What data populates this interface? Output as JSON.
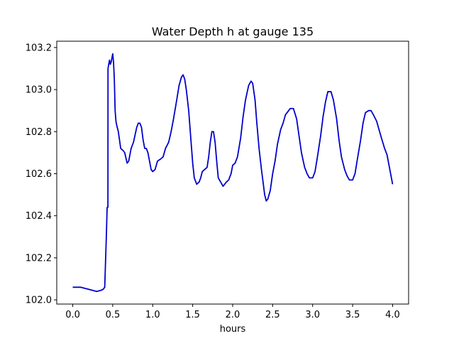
{
  "chart_data": {
    "type": "line",
    "title": "Water Depth h at gauge 135",
    "xlabel": "hours",
    "ylabel": "",
    "xlim": [
      -0.2,
      4.2
    ],
    "ylim": [
      101.98,
      103.23
    ],
    "xticks": [
      0.0,
      0.5,
      1.0,
      1.5,
      2.0,
      2.5,
      3.0,
      3.5,
      4.0
    ],
    "xtick_labels": [
      "0.0",
      "0.5",
      "1.0",
      "1.5",
      "2.0",
      "2.5",
      "3.0",
      "3.5",
      "4.0"
    ],
    "yticks": [
      102.0,
      102.2,
      102.4,
      102.6,
      102.8,
      103.0,
      103.2
    ],
    "ytick_labels": [
      "102.0",
      "102.2",
      "102.4",
      "102.6",
      "102.8",
      "103.0",
      "103.2"
    ],
    "grid": false,
    "legend": "none",
    "series": [
      {
        "color": "#0000cc",
        "x": [
          0.0,
          0.1,
          0.2,
          0.3,
          0.35,
          0.38,
          0.4,
          0.42,
          0.43,
          0.44,
          0.441,
          0.45,
          0.46,
          0.47,
          0.48,
          0.49,
          0.5,
          0.51,
          0.52,
          0.53,
          0.54,
          0.55,
          0.57,
          0.6,
          0.63,
          0.65,
          0.68,
          0.7,
          0.73,
          0.76,
          0.8,
          0.82,
          0.84,
          0.86,
          0.88,
          0.9,
          0.92,
          0.94,
          0.96,
          0.98,
          1.0,
          1.03,
          1.06,
          1.1,
          1.13,
          1.16,
          1.2,
          1.23,
          1.26,
          1.3,
          1.33,
          1.36,
          1.38,
          1.4,
          1.42,
          1.45,
          1.48,
          1.5,
          1.52,
          1.55,
          1.58,
          1.6,
          1.62,
          1.65,
          1.68,
          1.7,
          1.72,
          1.74,
          1.76,
          1.78,
          1.8,
          1.82,
          1.85,
          1.88,
          1.9,
          1.92,
          1.95,
          1.98,
          2.0,
          2.03,
          2.06,
          2.1,
          2.13,
          2.16,
          2.2,
          2.23,
          2.25,
          2.28,
          2.3,
          2.33,
          2.36,
          2.4,
          2.42,
          2.44,
          2.47,
          2.5,
          2.53,
          2.56,
          2.6,
          2.63,
          2.66,
          2.7,
          2.72,
          2.74,
          2.76,
          2.8,
          2.83,
          2.86,
          2.9,
          2.93,
          2.96,
          3.0,
          3.03,
          3.06,
          3.1,
          3.13,
          3.16,
          3.19,
          3.21,
          3.23,
          3.26,
          3.3,
          3.33,
          3.36,
          3.4,
          3.43,
          3.46,
          3.5,
          3.53,
          3.56,
          3.6,
          3.63,
          3.66,
          3.7,
          3.73,
          3.76,
          3.8,
          3.83,
          3.86,
          3.9,
          3.93,
          3.96,
          4.0
        ],
        "y": [
          102.06,
          102.06,
          102.05,
          102.04,
          102.045,
          102.05,
          102.06,
          102.3,
          102.44,
          102.44,
          103.1,
          103.12,
          103.14,
          103.12,
          103.13,
          103.15,
          103.17,
          103.13,
          103.05,
          102.9,
          102.85,
          102.83,
          102.8,
          102.72,
          102.71,
          102.7,
          102.65,
          102.66,
          102.72,
          102.75,
          102.82,
          102.84,
          102.84,
          102.82,
          102.76,
          102.72,
          102.72,
          102.7,
          102.66,
          102.62,
          102.61,
          102.62,
          102.66,
          102.67,
          102.68,
          102.72,
          102.75,
          102.8,
          102.86,
          102.95,
          103.02,
          103.06,
          103.07,
          103.05,
          103.0,
          102.9,
          102.75,
          102.65,
          102.58,
          102.55,
          102.56,
          102.58,
          102.61,
          102.62,
          102.63,
          102.68,
          102.75,
          102.8,
          102.8,
          102.75,
          102.66,
          102.58,
          102.56,
          102.54,
          102.55,
          102.56,
          102.57,
          102.6,
          102.64,
          102.65,
          102.68,
          102.77,
          102.87,
          102.95,
          103.02,
          103.04,
          103.03,
          102.95,
          102.85,
          102.72,
          102.62,
          102.5,
          102.47,
          102.48,
          102.52,
          102.6,
          102.66,
          102.74,
          102.81,
          102.84,
          102.88,
          102.9,
          102.91,
          102.91,
          102.91,
          102.86,
          102.78,
          102.7,
          102.63,
          102.6,
          102.58,
          102.58,
          102.61,
          102.68,
          102.78,
          102.87,
          102.94,
          102.99,
          102.99,
          102.99,
          102.95,
          102.86,
          102.76,
          102.68,
          102.62,
          102.59,
          102.57,
          102.57,
          102.6,
          102.67,
          102.76,
          102.84,
          102.89,
          102.9,
          102.9,
          102.88,
          102.85,
          102.81,
          102.77,
          102.72,
          102.69,
          102.63,
          102.55
        ]
      }
    ]
  }
}
